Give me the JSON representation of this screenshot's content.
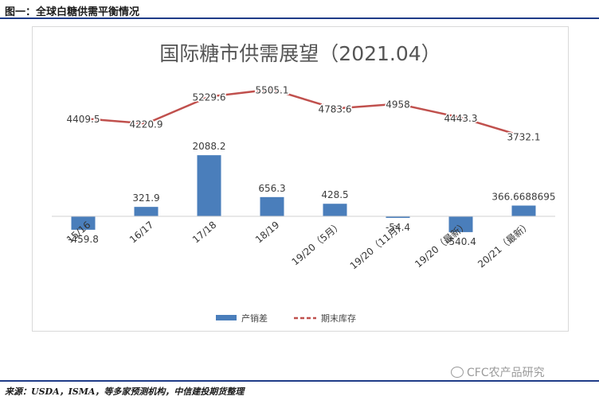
{
  "figure": {
    "header": "图一：全球白糖供需平衡情况",
    "source": "来源：USDA，ISMA，等多家预测机构，中信建投期货整理",
    "watermark": "CFC农产品研究"
  },
  "colors": {
    "bar": "#4a7ebb",
    "line": "#c0504d",
    "value_text": "#3c3c3c",
    "rule": "#1f3c88"
  },
  "chart_data": {
    "type": "bar",
    "title": "国际糖市供需展望（2021.04）",
    "categories": [
      "15/16",
      "16/17",
      "17/18",
      "18/19",
      "19/20（5月）",
      "19/20（11月）",
      "19/20（最新）",
      "20/21（最新）"
    ],
    "series": [
      {
        "name": "产销差",
        "kind": "bar",
        "values": [
          -459.8,
          321.9,
          2088.2,
          656.3,
          428.5,
          -54.4,
          -540.4,
          366.6688695
        ],
        "labels": [
          "-459.8",
          "321.9",
          "2088.2",
          "656.3",
          "428.5",
          "-54.4",
          "-540.4",
          "366.6688695"
        ]
      },
      {
        "name": "期末库存",
        "kind": "line",
        "style": "dashed-legend",
        "values": [
          4409.5,
          4220.9,
          5229.6,
          5505.1,
          4783.6,
          4958,
          4443.3,
          3732.1
        ],
        "labels": [
          "4409.5",
          "4220.9",
          "5229.6",
          "5505.1",
          "4783.6",
          "4958",
          "4443.3",
          "3732.1"
        ]
      }
    ],
    "legend": {
      "position": "bottom-center",
      "entries": [
        "产销差",
        "期末库存"
      ]
    },
    "grid": false,
    "xlabel": "",
    "ylabel": ""
  }
}
